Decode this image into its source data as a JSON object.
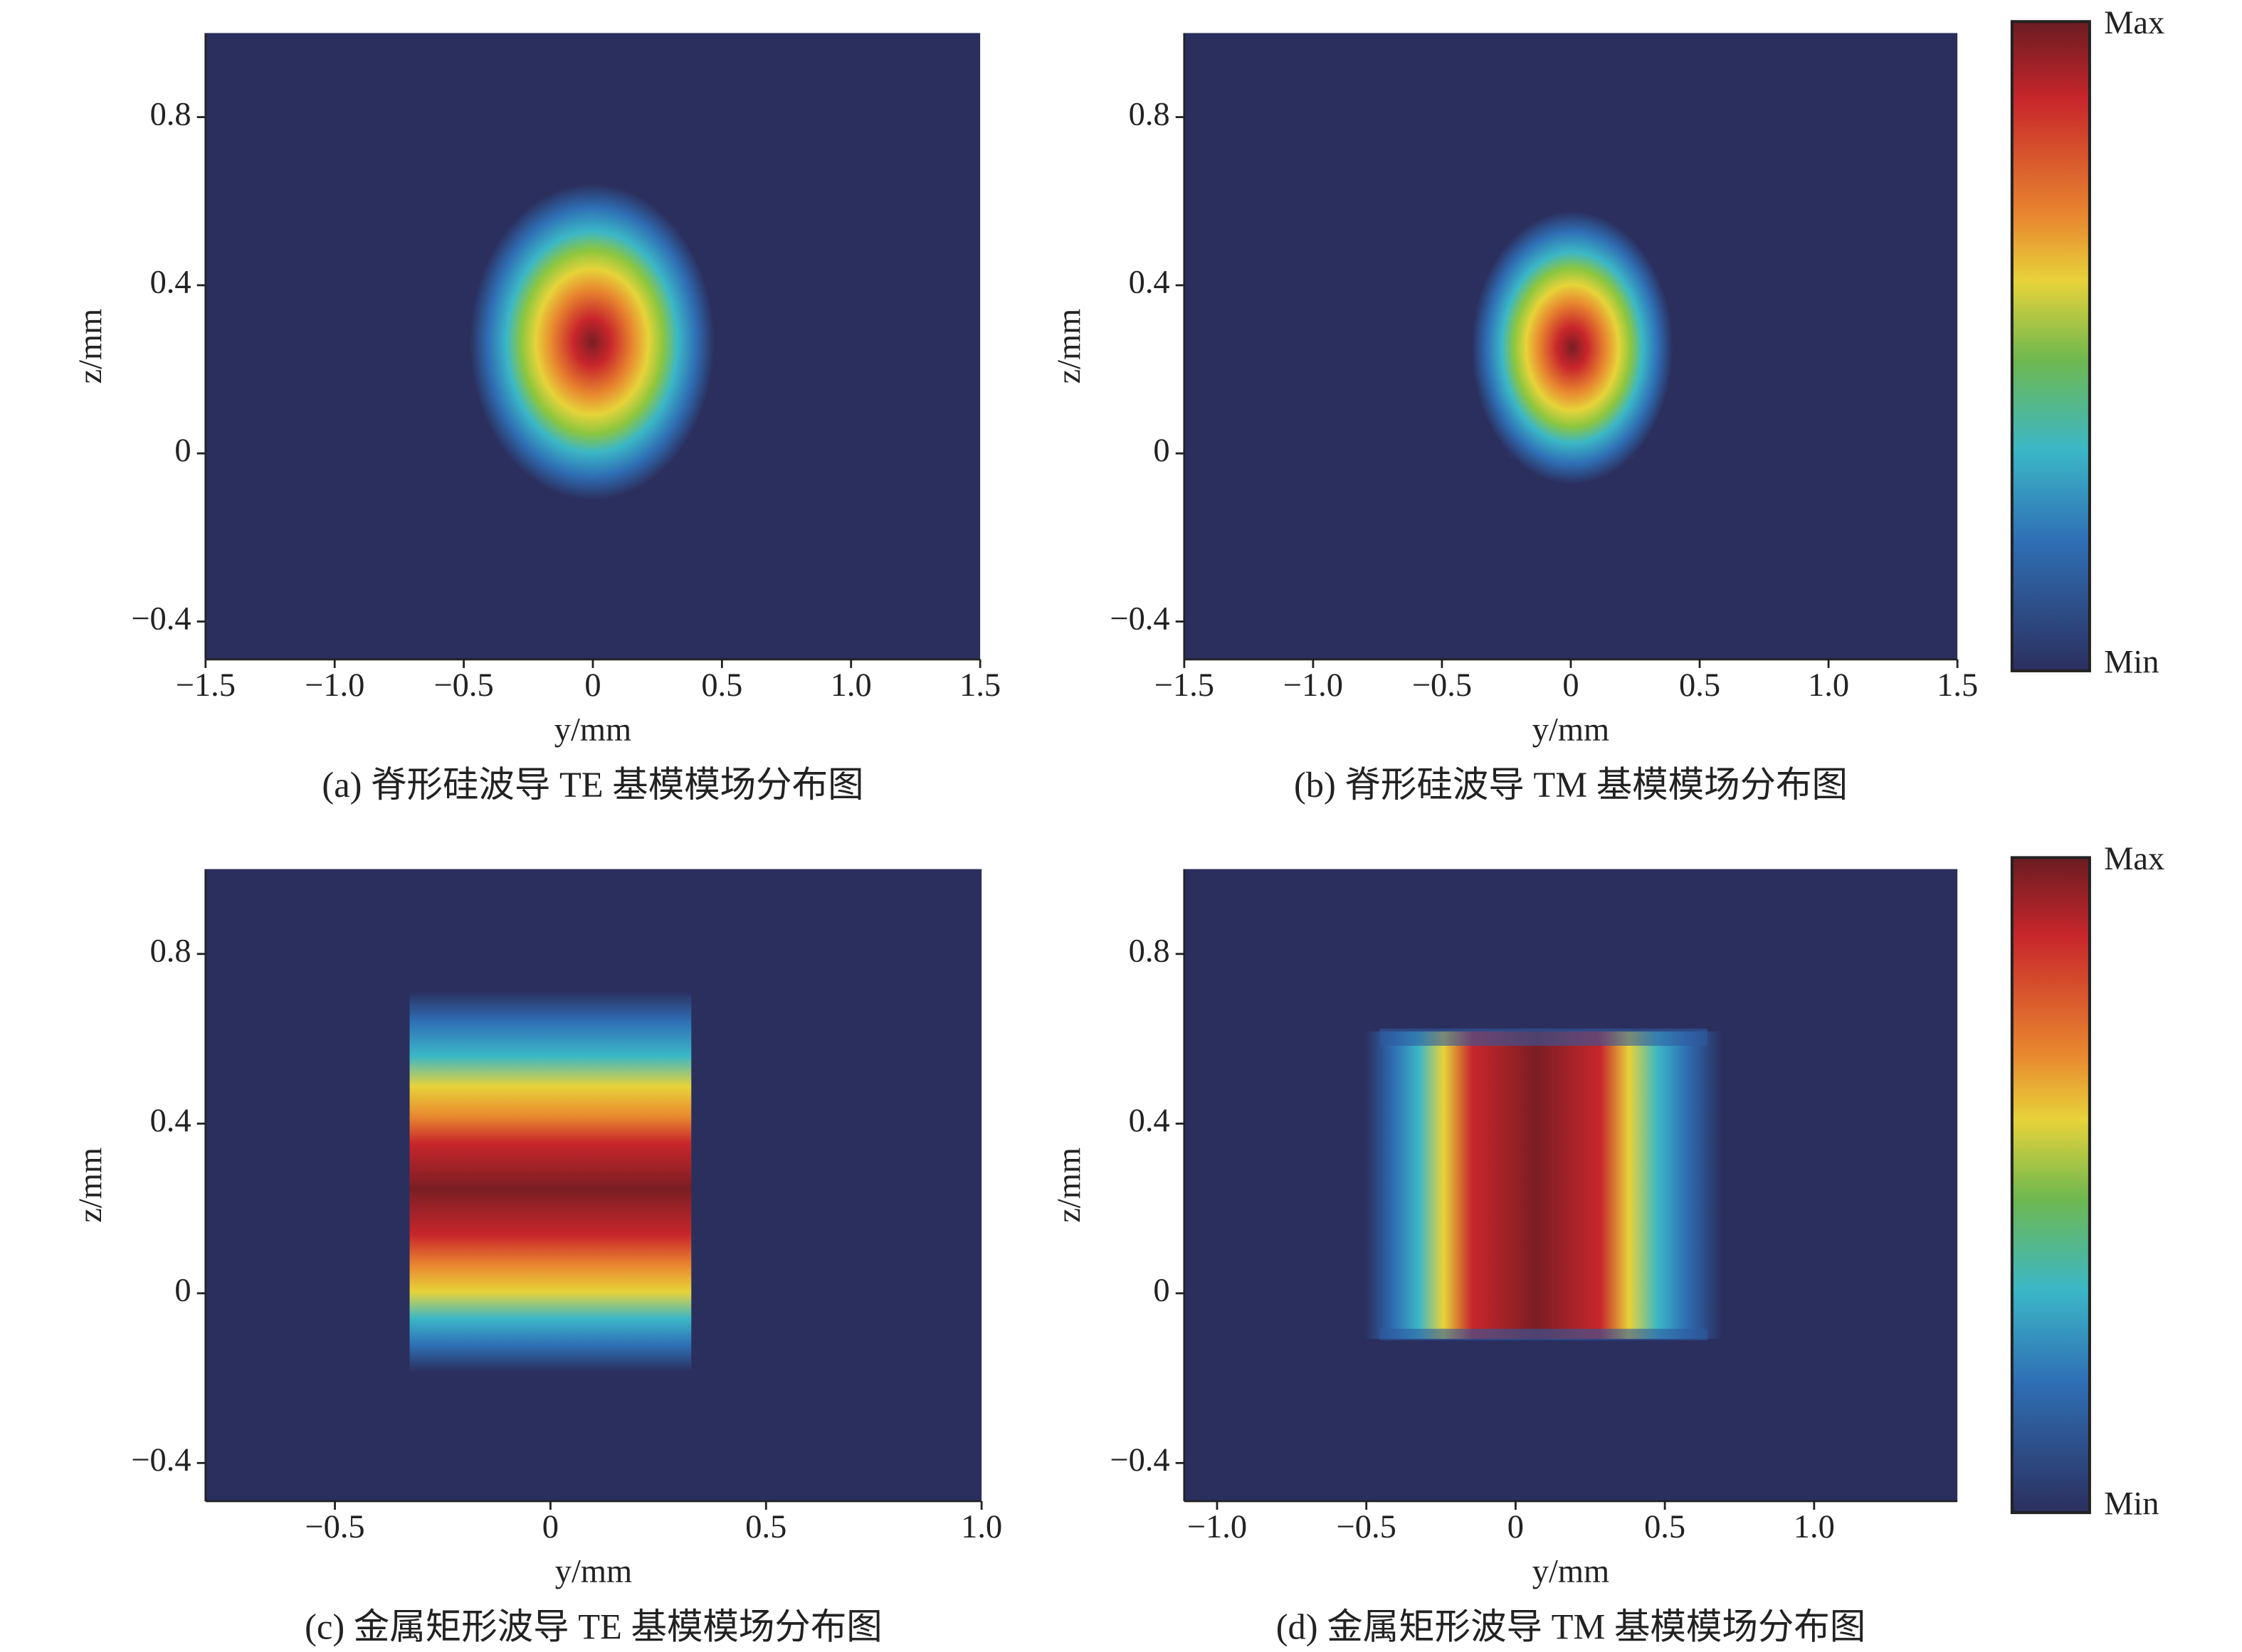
{
  "chart_data": [
    {
      "type": "heatmap",
      "xlabel": "y/mm",
      "ylabel": "z/mm",
      "caption": "(a) 脊形硅波导 TE 基模模场分布图",
      "xlim": [
        -1.5,
        1.5
      ],
      "ylim": [
        -0.49,
        1.0
      ],
      "xticks": [
        {
          "value": -1.5,
          "label": "−1.5"
        },
        {
          "value": -1,
          "label": "−1.0"
        },
        {
          "value": -0.5,
          "label": "−0.5"
        },
        0,
        0.5,
        {
          "value": 1,
          "label": "1.0"
        },
        1.5
      ],
      "yticks": [
        {
          "value": -0.4,
          "label": "−0.4"
        },
        0,
        0.4,
        0.8
      ]
    },
    {
      "type": "heatmap",
      "xlabel": "y/mm",
      "ylabel": "z/mm",
      "caption": "(b) 脊形硅波导 TM 基模模场分布图",
      "xlim": [
        -1.5,
        1.5
      ],
      "ylim": [
        -0.49,
        1.0
      ],
      "xticks": [
        {
          "value": -1.5,
          "label": "−1.5"
        },
        {
          "value": -1,
          "label": "−1.0"
        },
        {
          "value": -0.5,
          "label": "−0.5"
        },
        0,
        0.5,
        {
          "value": 1,
          "label": "1.0"
        },
        1.5
      ],
      "yticks": [
        {
          "value": -0.4,
          "label": "−0.4"
        },
        0,
        0.4,
        0.8
      ],
      "colorbar": {
        "max_label": "Max",
        "min_label": "Min"
      }
    },
    {
      "type": "heatmap",
      "xlabel": "y/mm",
      "ylabel": "z/mm",
      "caption": "(c) 金属矩形波导 TE 基模模场分布图",
      "xlim": [
        -0.8,
        1.0
      ],
      "ylim": [
        -0.49,
        1.0
      ],
      "xticks": [
        {
          "value": -0.5,
          "label": "−0.5"
        },
        0,
        0.5,
        {
          "value": 1,
          "label": "1.0"
        }
      ],
      "yticks": [
        {
          "value": -0.4,
          "label": "−0.4"
        },
        0,
        0.4,
        0.8
      ]
    },
    {
      "type": "heatmap",
      "xlabel": "y/mm",
      "ylabel": "z/mm",
      "caption": "(d) 金属矩形波导 TM 基模模场分布图",
      "xlim": [
        -1.11,
        1.48
      ],
      "ylim": [
        -0.49,
        1.0
      ],
      "xticks": [
        {
          "value": -1,
          "label": "−1.0"
        },
        {
          "value": -0.5,
          "label": "−0.5"
        },
        0,
        0.5,
        {
          "value": 1,
          "label": "1.0"
        }
      ],
      "yticks": [
        {
          "value": -0.4,
          "label": "−0.4"
        },
        0,
        0.4,
        0.8
      ],
      "colorbar": {
        "max_label": "Max",
        "min_label": "Min"
      }
    }
  ]
}
